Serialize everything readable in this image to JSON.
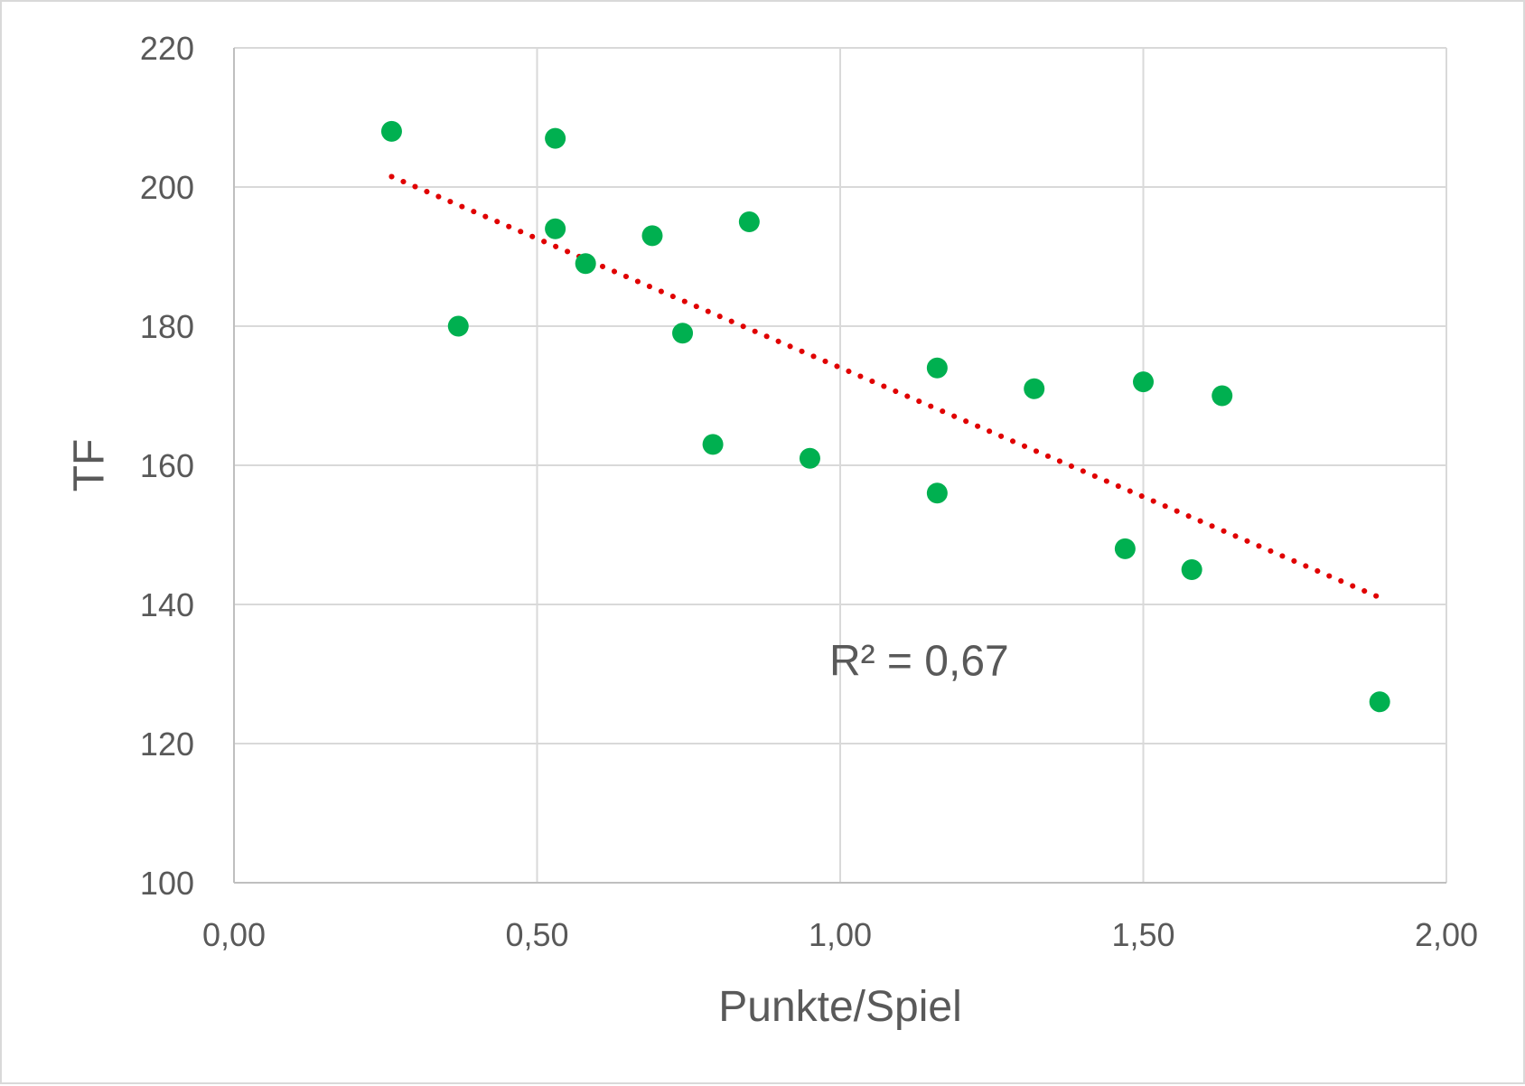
{
  "chart_data": {
    "type": "scatter",
    "xlabel": "Punkte/Spiel",
    "ylabel": "TF",
    "xlim": [
      0,
      2
    ],
    "ylim": [
      100,
      220
    ],
    "x_ticks": [
      "0,00",
      "0,50",
      "1,00",
      "1,50",
      "2,00"
    ],
    "x_tick_values": [
      0,
      0.5,
      1,
      1.5,
      2
    ],
    "y_ticks": [
      "100",
      "120",
      "140",
      "160",
      "180",
      "200",
      "220"
    ],
    "y_tick_values": [
      100,
      120,
      140,
      160,
      180,
      200,
      220
    ],
    "grid": true,
    "series": [
      {
        "color": "#00b050",
        "points": [
          {
            "x": 0.26,
            "y": 208
          },
          {
            "x": 0.37,
            "y": 180
          },
          {
            "x": 0.53,
            "y": 207
          },
          {
            "x": 0.53,
            "y": 194
          },
          {
            "x": 0.58,
            "y": 189
          },
          {
            "x": 0.69,
            "y": 193
          },
          {
            "x": 0.74,
            "y": 179
          },
          {
            "x": 0.79,
            "y": 163
          },
          {
            "x": 0.85,
            "y": 195
          },
          {
            "x": 0.95,
            "y": 161
          },
          {
            "x": 1.16,
            "y": 174
          },
          {
            "x": 1.16,
            "y": 156
          },
          {
            "x": 1.32,
            "y": 171
          },
          {
            "x": 1.47,
            "y": 148
          },
          {
            "x": 1.5,
            "y": 172
          },
          {
            "x": 1.58,
            "y": 145
          },
          {
            "x": 1.63,
            "y": 170
          },
          {
            "x": 1.89,
            "y": 126
          }
        ]
      }
    ],
    "trendline": {
      "type": "linear",
      "style": "dotted",
      "color": "#e00000",
      "x_start": 0.26,
      "y_start": 201.5,
      "x_end": 1.89,
      "y_end": 141
    },
    "annotations": [
      {
        "text": "R² = 0,67",
        "x": 1.23,
        "y": 132
      }
    ]
  }
}
